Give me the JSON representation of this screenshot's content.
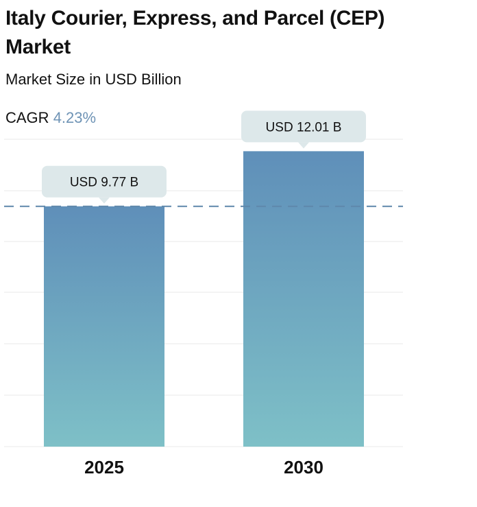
{
  "header": {
    "title": "Italy Courier, Express, and Parcel (CEP) Market",
    "subtitle": "Market Size in USD Billion",
    "cagr_label": "CAGR",
    "cagr_value": "4.23%"
  },
  "colors": {
    "bar_top": "#5f8fb9",
    "bar_bottom": "#7ec0c7",
    "callout_bg": "#dde8ea",
    "dashed_line": "#5f87ab",
    "grid": "#e8e8e8",
    "cagr_accent": "#6e93b5"
  },
  "chart_data": {
    "type": "bar",
    "title": "Italy Courier, Express, and Parcel (CEP) Market",
    "subtitle": "Market Size in USD Billion",
    "categories": [
      "2025",
      "2030"
    ],
    "values": [
      9.77,
      12.01
    ],
    "data_labels": [
      "USD 9.77 B",
      "USD 12.01 B"
    ],
    "xlabel": "",
    "ylabel": "",
    "ylim": [
      0,
      12.3
    ],
    "reference_line": 9.77,
    "grid": true
  }
}
